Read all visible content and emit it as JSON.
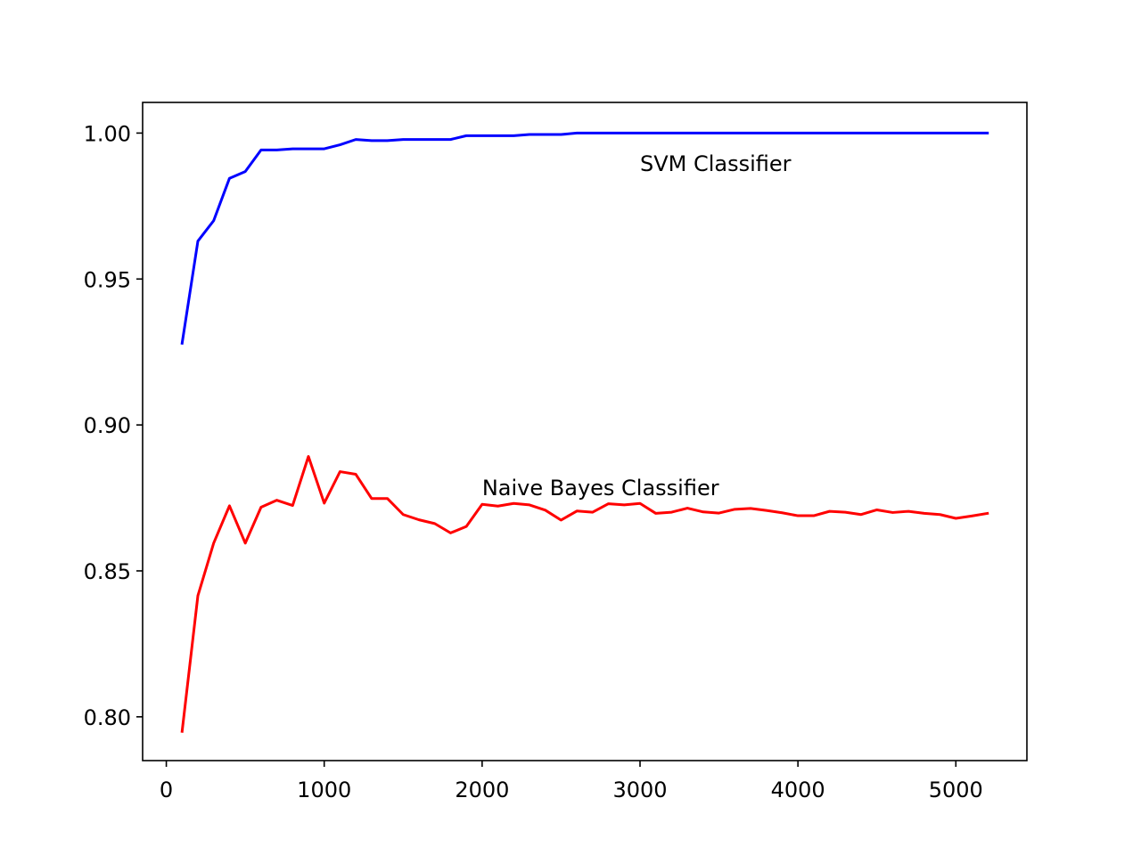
{
  "chart_data": {
    "type": "line",
    "title": "",
    "xlabel": "",
    "ylabel": "",
    "xlim": [
      -150,
      5450
    ],
    "ylim": [
      0.785,
      1.0105
    ],
    "grid": false,
    "x_ticks": [
      0,
      1000,
      2000,
      3000,
      4000,
      5000
    ],
    "x_tick_labels": [
      "0",
      "1000",
      "2000",
      "3000",
      "4000",
      "5000"
    ],
    "y_ticks": [
      0.8,
      0.85,
      0.9,
      0.95,
      1.0
    ],
    "y_tick_labels": [
      "0.80",
      "0.85",
      "0.90",
      "0.95",
      "1.00"
    ],
    "x": [
      100,
      200,
      300,
      400,
      500,
      600,
      700,
      800,
      900,
      1000,
      1100,
      1200,
      1300,
      1400,
      1500,
      1600,
      1700,
      1800,
      1900,
      2000,
      2100,
      2200,
      2300,
      2400,
      2500,
      2600,
      2700,
      2800,
      2900,
      3000,
      3100,
      3200,
      3300,
      3400,
      3500,
      3600,
      3700,
      3800,
      3900,
      4000,
      4100,
      4200,
      4300,
      4400,
      4500,
      4600,
      4700,
      4800,
      4900,
      5000,
      5100,
      5200
    ],
    "series": [
      {
        "name": "SVM Classifier",
        "color": "#0000ff",
        "values": [
          0.928,
          0.963,
          0.97,
          0.9845,
          0.9868,
          0.9942,
          0.9942,
          0.9946,
          0.9946,
          0.9946,
          0.996,
          0.9978,
          0.9974,
          0.9974,
          0.9978,
          0.9978,
          0.9978,
          0.9978,
          0.9991,
          0.9991,
          0.9991,
          0.9991,
          0.9995,
          0.9995,
          0.9995,
          1.0,
          1.0,
          1.0,
          1.0,
          1.0,
          1.0,
          1.0,
          1.0,
          1.0,
          1.0,
          1.0,
          1.0,
          1.0,
          1.0,
          1.0,
          1.0,
          1.0,
          1.0,
          1.0,
          1.0,
          1.0,
          1.0,
          1.0,
          1.0,
          1.0,
          1.0,
          1.0
        ]
      },
      {
        "name": "Naive Bayes Classifier",
        "color": "#ff0000",
        "values": [
          0.795,
          0.8415,
          0.8595,
          0.8723,
          0.8595,
          0.8718,
          0.8742,
          0.8724,
          0.8892,
          0.8732,
          0.884,
          0.8831,
          0.8748,
          0.8748,
          0.8693,
          0.8675,
          0.8662,
          0.863,
          0.8652,
          0.8728,
          0.8722,
          0.8731,
          0.8726,
          0.8708,
          0.8674,
          0.8705,
          0.8701,
          0.873,
          0.8726,
          0.8731,
          0.8697,
          0.8701,
          0.8715,
          0.8702,
          0.8698,
          0.8711,
          0.8714,
          0.8707,
          0.8699,
          0.8689,
          0.8689,
          0.8704,
          0.8701,
          0.8693,
          0.8709,
          0.87,
          0.8704,
          0.8697,
          0.8693,
          0.868,
          0.8688,
          0.8697
        ]
      }
    ],
    "annotations": [
      {
        "text": "SVM Classifier",
        "x": 3000,
        "y": 0.987
      },
      {
        "text": "Naive Bayes Classifier",
        "x": 2000,
        "y": 0.876
      }
    ]
  }
}
